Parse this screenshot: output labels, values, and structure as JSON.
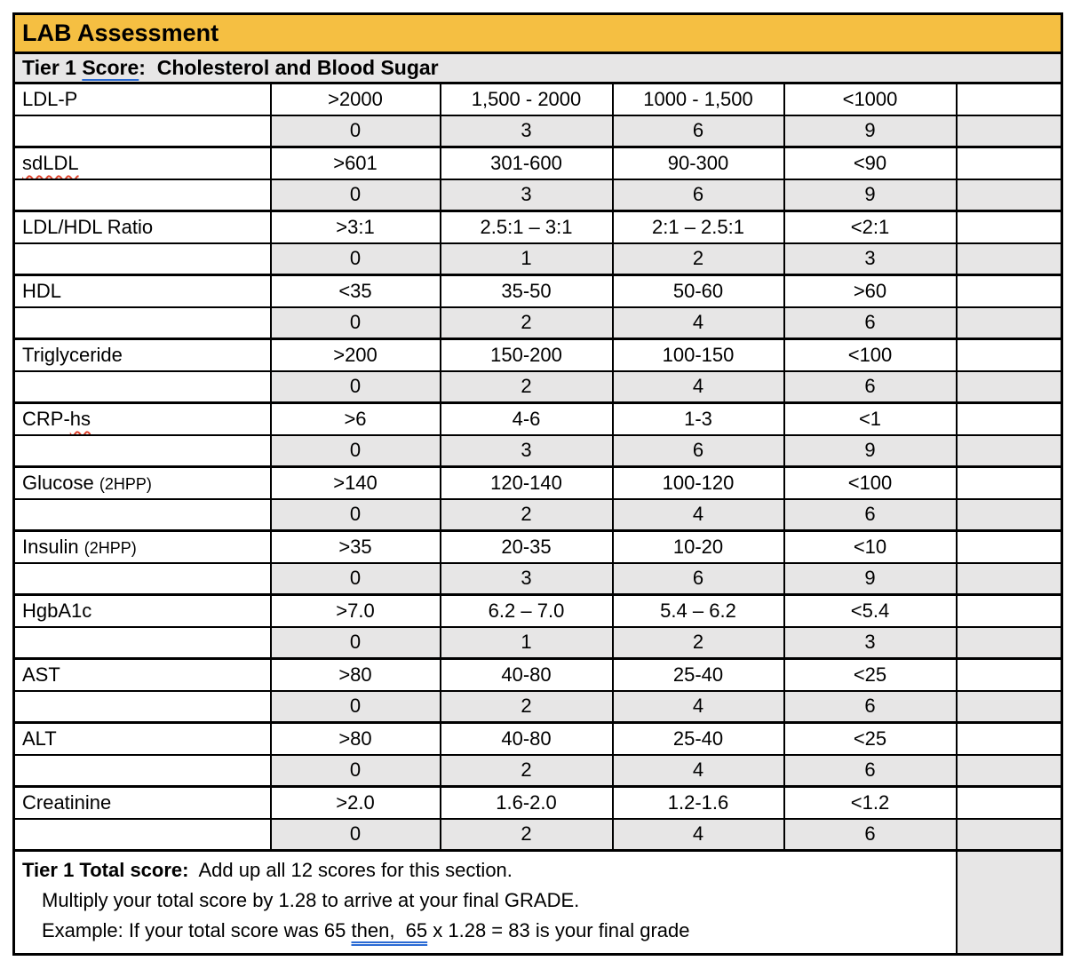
{
  "title": "LAB Assessment",
  "subheader": {
    "parts": [
      {
        "text": "Tier 1 ",
        "style": "plain"
      },
      {
        "text": "Score",
        "style": "blue-dbl"
      },
      {
        "text": ":  Cholesterol and Blood Sugar",
        "style": "plain"
      }
    ]
  },
  "rows": [
    {
      "name_parts": [
        {
          "text": "LDL-P",
          "style": "plain"
        }
      ],
      "ranges": [
        ">2000",
        "1,500 - 2000",
        "1000 - 1,500",
        "<1000"
      ],
      "scores": [
        "0",
        "3",
        "6",
        "9"
      ],
      "entry": ""
    },
    {
      "name_parts": [
        {
          "text": "sdLDL",
          "style": "squiggly"
        }
      ],
      "ranges": [
        ">601",
        "301-600",
        "90-300",
        "<90"
      ],
      "scores": [
        "0",
        "3",
        "6",
        "9"
      ],
      "entry": ""
    },
    {
      "name_parts": [
        {
          "text": "LDL/HDL Ratio",
          "style": "plain"
        }
      ],
      "ranges": [
        ">3:1",
        "2.5:1 – 3:1",
        "2:1 – 2.5:1",
        "<2:1"
      ],
      "scores": [
        "0",
        "1",
        "2",
        "3"
      ],
      "entry": ""
    },
    {
      "name_parts": [
        {
          "text": "HDL",
          "style": "plain"
        }
      ],
      "ranges": [
        "<35",
        "35-50",
        "50-60",
        ">60"
      ],
      "scores": [
        "0",
        "2",
        "4",
        "6"
      ],
      "entry": ""
    },
    {
      "name_parts": [
        {
          "text": "Triglyceride",
          "style": "plain"
        }
      ],
      "ranges": [
        ">200",
        "150-200",
        "100-150",
        "<100"
      ],
      "scores": [
        "0",
        "2",
        "4",
        "6"
      ],
      "entry": ""
    },
    {
      "name_parts": [
        {
          "text": "CRP-",
          "style": "plain"
        },
        {
          "text": "hs",
          "style": "squiggly"
        }
      ],
      "ranges": [
        ">6",
        "4-6",
        "1-3",
        "<1"
      ],
      "scores": [
        "0",
        "3",
        "6",
        "9"
      ],
      "entry": ""
    },
    {
      "name_parts": [
        {
          "text": "Glucose ",
          "style": "plain"
        },
        {
          "text": "(2HPP)",
          "style": "small"
        }
      ],
      "ranges": [
        ">140",
        "120-140",
        "100-120",
        "<100"
      ],
      "scores": [
        "0",
        "2",
        "4",
        "6"
      ],
      "entry": ""
    },
    {
      "name_parts": [
        {
          "text": "Insulin ",
          "style": "plain"
        },
        {
          "text": "(2HPP)",
          "style": "small"
        }
      ],
      "ranges": [
        ">35",
        "20-35",
        "10-20",
        "<10"
      ],
      "scores": [
        "0",
        "3",
        "6",
        "9"
      ],
      "entry": ""
    },
    {
      "name_parts": [
        {
          "text": "HgbA1c",
          "style": "plain"
        }
      ],
      "ranges": [
        ">7.0",
        "6.2 – 7.0",
        "5.4 – 6.2",
        "<5.4"
      ],
      "scores": [
        "0",
        "1",
        "2",
        "3"
      ],
      "entry": ""
    },
    {
      "name_parts": [
        {
          "text": "AST",
          "style": "plain"
        }
      ],
      "ranges": [
        ">80",
        "40-80",
        "25-40",
        "<25"
      ],
      "scores": [
        "0",
        "2",
        "4",
        "6"
      ],
      "entry": ""
    },
    {
      "name_parts": [
        {
          "text": "ALT",
          "style": "plain"
        }
      ],
      "ranges": [
        ">80",
        "40-80",
        "25-40",
        "<25"
      ],
      "scores": [
        "0",
        "2",
        "4",
        "6"
      ],
      "entry": ""
    },
    {
      "name_parts": [
        {
          "text": "Creatinine",
          "style": "plain"
        }
      ],
      "ranges": [
        ">2.0",
        "1.6-2.0",
        "1.2-1.6",
        "<1.2"
      ],
      "scores": [
        "0",
        "2",
        "4",
        "6"
      ],
      "entry": ""
    }
  ],
  "footer": {
    "line1": {
      "parts": [
        {
          "text": "Tier 1 Total score:",
          "style": "bold"
        },
        {
          "text": "  Add up all 12 scores for this section.",
          "style": "plain"
        }
      ]
    },
    "line2": {
      "parts": [
        {
          "text": "Multiply your total score by 1.28 to arrive at your final GRADE.",
          "style": "plain"
        }
      ]
    },
    "line3": {
      "parts": [
        {
          "text": "Example: If your total score was 65 ",
          "style": "plain"
        },
        {
          "text": "then,  65",
          "style": "blue-dbl"
        },
        {
          "text": " x 1.28 = 83 is your final grade",
          "style": "plain"
        }
      ]
    },
    "total_entry": ""
  },
  "colors": {
    "header_bg": "#F5BF42",
    "shaded_row_bg": "#E7E6E6",
    "border": "#000000",
    "grammar_underline_blue": "#2B6BD4",
    "spellcheck_red": "#E0432D"
  }
}
